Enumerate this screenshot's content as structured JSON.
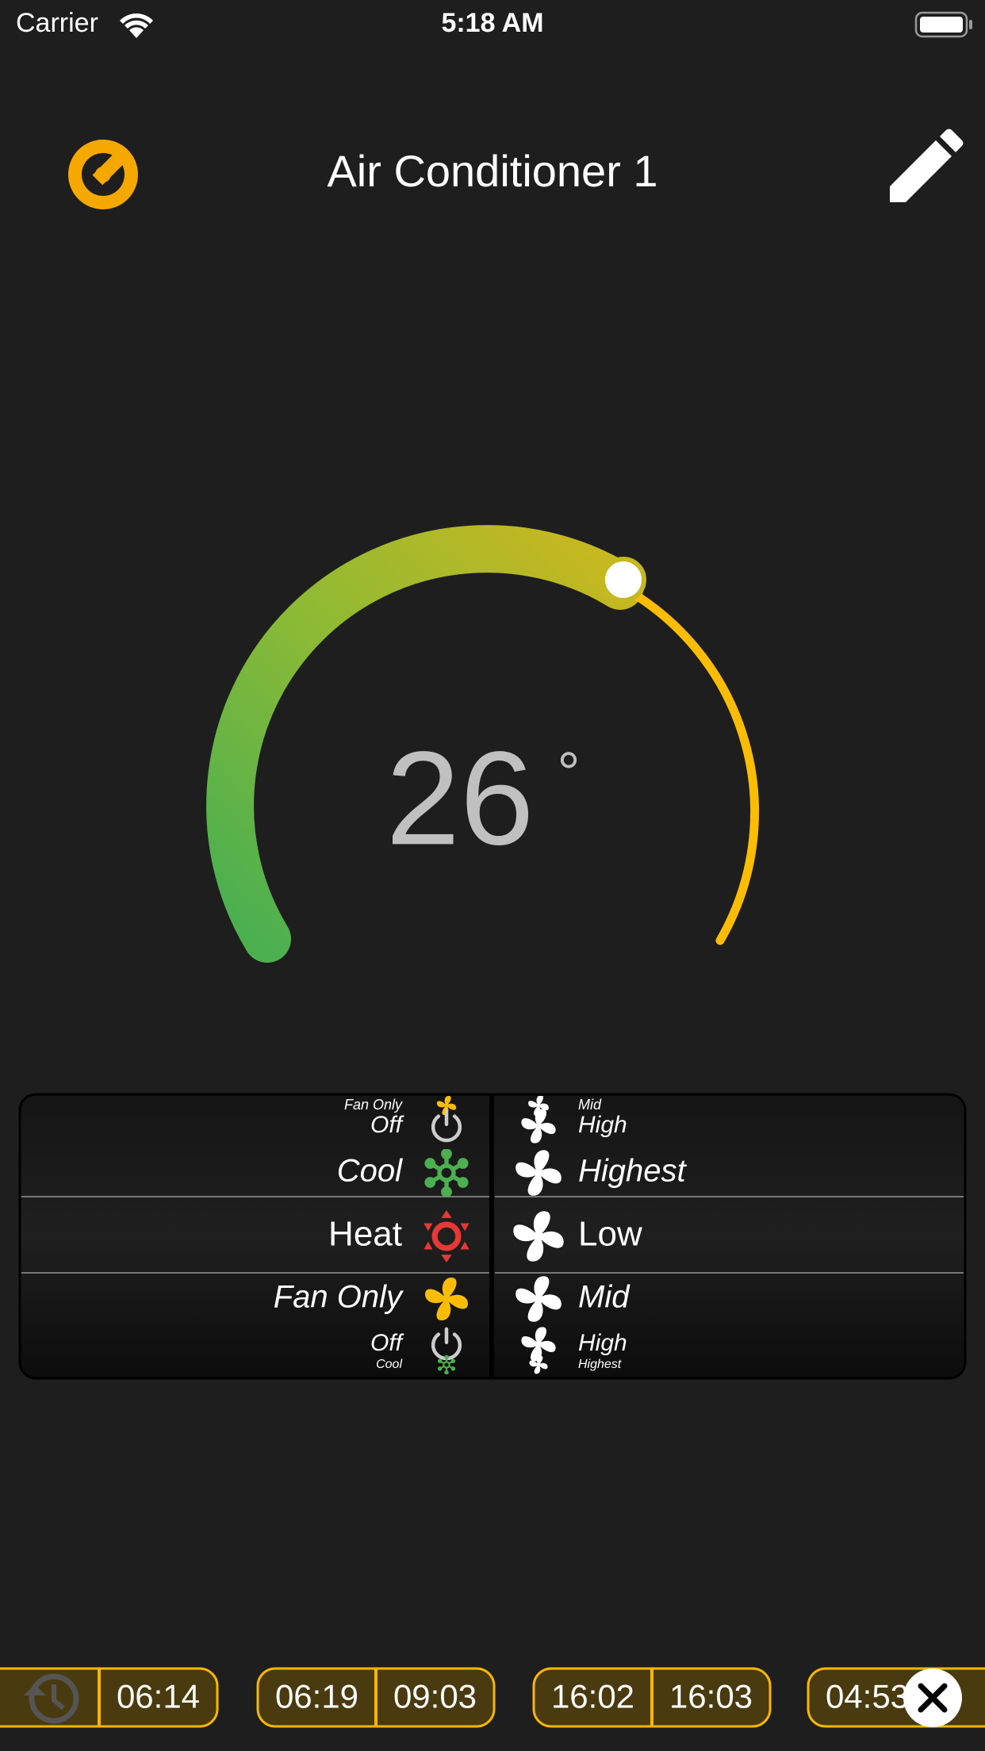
{
  "status_bar": {
    "carrier": "Carrier",
    "time": "5:18 AM"
  },
  "header": {
    "title": "Air Conditioner 1"
  },
  "thermostat": {
    "temperature": "26",
    "unit": "°"
  },
  "picker": {
    "modes": [
      "Fan Only",
      "Off",
      "Cool",
      "Heat",
      "Fan Only",
      "Off",
      "Cool"
    ],
    "fan_speeds": [
      "Mid",
      "High",
      "Highest",
      "Low",
      "Mid",
      "High",
      "Highest"
    ]
  },
  "schedules": [
    [
      "06:14"
    ],
    [
      "06:19",
      "09:03"
    ],
    [
      "16:02",
      "16:03"
    ],
    [
      "04:53"
    ]
  ]
}
